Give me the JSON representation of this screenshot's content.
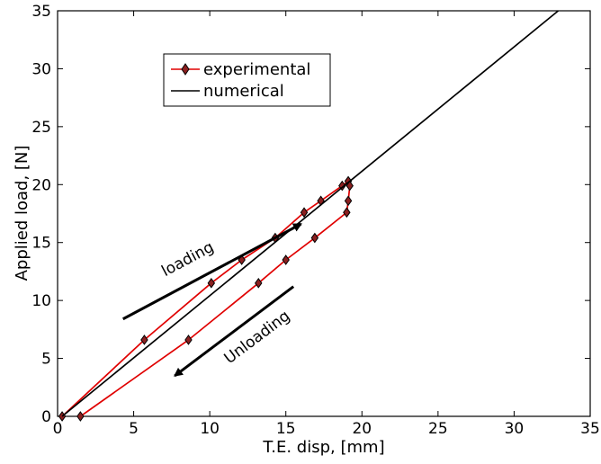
{
  "chart_data": {
    "type": "line",
    "xlabel": "T.E. disp, [mm]",
    "ylabel": "Applied load, [N]",
    "xlim": [
      0,
      35
    ],
    "ylim": [
      0,
      35
    ],
    "xticks": [
      0,
      5,
      10,
      15,
      20,
      25,
      30,
      35
    ],
    "yticks": [
      0,
      5,
      10,
      15,
      20,
      25,
      30,
      35
    ],
    "grid": false,
    "legend_position": "top-left",
    "series": [
      {
        "name": "experimental",
        "color": "#e00000",
        "marker": "diamond",
        "points": [
          [
            0.3,
            0.0
          ],
          [
            5.7,
            6.6
          ],
          [
            10.1,
            11.5
          ],
          [
            12.1,
            13.5
          ],
          [
            14.3,
            15.4
          ],
          [
            16.2,
            17.6
          ],
          [
            17.3,
            18.6
          ],
          [
            18.7,
            19.9
          ],
          [
            19.1,
            20.3
          ],
          [
            19.2,
            19.9
          ],
          [
            19.1,
            18.6
          ],
          [
            19.0,
            17.6
          ],
          [
            16.9,
            15.4
          ],
          [
            15.0,
            13.5
          ],
          [
            13.2,
            11.5
          ],
          [
            8.6,
            6.6
          ],
          [
            1.5,
            0.0
          ]
        ]
      },
      {
        "name": "numerical",
        "color": "#000000",
        "marker": "none",
        "points": [
          [
            0.3,
            0.0
          ],
          [
            32.9,
            35.0
          ]
        ]
      }
    ],
    "annotations": [
      {
        "text": "loading",
        "arrow_from": [
          4.3,
          8.4
        ],
        "arrow_to": [
          16.0,
          16.6
        ],
        "text_at": [
          8.7,
          13.2
        ]
      },
      {
        "text": "Unloading",
        "arrow_from": [
          15.5,
          11.2
        ],
        "arrow_to": [
          7.7,
          3.5
        ],
        "text_at": [
          13.3,
          6.5
        ]
      }
    ]
  }
}
